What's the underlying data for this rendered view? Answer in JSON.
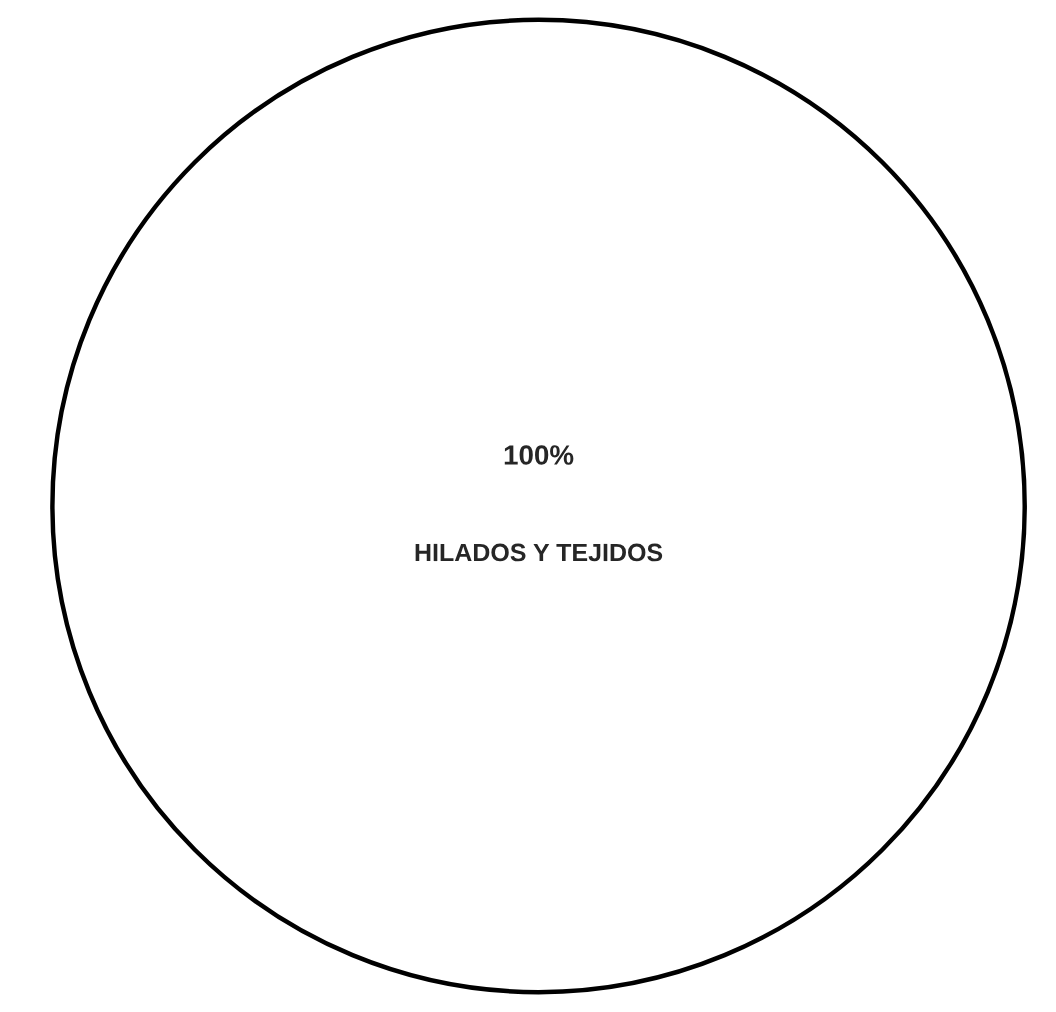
{
  "chart_data": {
    "type": "pie",
    "categories": [
      "HILADOS Y TEJIDOS"
    ],
    "values": [
      100
    ],
    "colors": [
      "#ffffff"
    ],
    "value_labels": [
      "100%"
    ]
  }
}
